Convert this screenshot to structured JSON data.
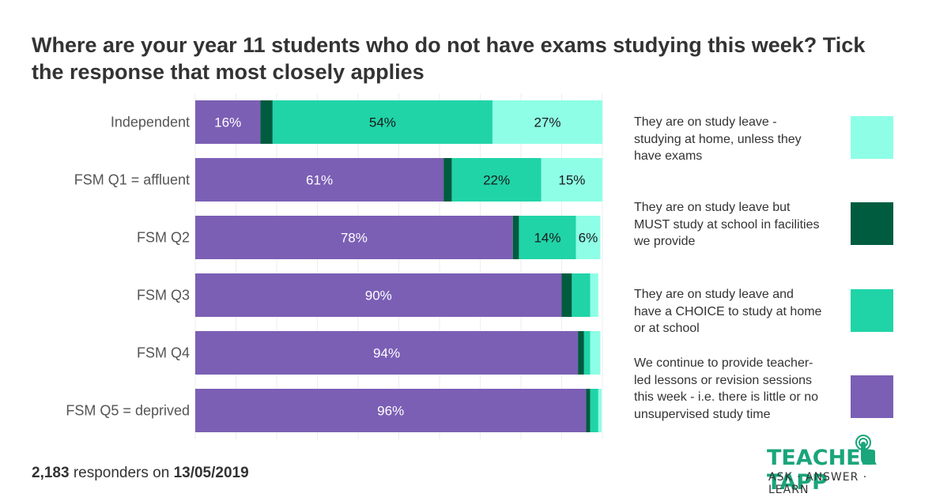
{
  "title": "Where are your year 11 students who do not have exams studying this week? Tick the response that most closely applies",
  "chart_data": {
    "type": "bar",
    "orientation": "horizontal",
    "stacked": true,
    "categories": [
      "Independent",
      "FSM Q1 = affluent",
      "FSM Q2",
      "FSM Q3",
      "FSM Q4",
      "FSM Q5 = deprived"
    ],
    "series": [
      {
        "name": "We continue to provide teacher-led lessons or revision sessions this week - i.e. there is little or no unsupervised study time",
        "color": "#7b5fb5",
        "label_color": "#ffffff",
        "values": [
          16,
          61,
          78,
          90,
          94,
          96
        ],
        "labels": [
          "16%",
          "61%",
          "78%",
          "90%",
          "94%",
          "96%"
        ]
      },
      {
        "name": "They are on study leave but MUST study at school in facilities we provide",
        "color": "#005c3f",
        "label_color": "#ffffff",
        "values": [
          3,
          2,
          1.5,
          2.5,
          1.5,
          1
        ],
        "labels": [
          "",
          "",
          "",
          "",
          "",
          ""
        ]
      },
      {
        "name": "They are on  study leave and have a CHOICE to study at home or at school",
        "color": "#20d4a8",
        "label_color": "#1a1a1a",
        "values": [
          54,
          22,
          14,
          4.5,
          1.5,
          2
        ],
        "labels": [
          "54%",
          "22%",
          "14%",
          "",
          "",
          ""
        ]
      },
      {
        "name": "They are on study leave - studying at home, unless they have exams",
        "color": "#8effe6",
        "label_color": "#1a1a1a",
        "values": [
          27,
          15,
          6,
          2,
          2.5,
          0.8
        ],
        "labels": [
          "27%",
          "15%",
          "6%",
          "",
          "",
          ""
        ]
      }
    ],
    "xlim": [
      0,
      100
    ],
    "grid": true,
    "legend": [
      {
        "text": "They are on study leave - studying at home, unless they have exams",
        "color": "#8effe6"
      },
      {
        "text": "They are on study leave but MUST study at school in facilities we provide",
        "color": "#005c3f"
      },
      {
        "text": "They are on  study leave and have a CHOICE to study at home or at school",
        "color": "#20d4a8"
      },
      {
        "text": "We continue to provide teacher-led lessons or revision sessions this week - i.e. there is little or no unsupervised study time",
        "color": "#7b5fb5"
      }
    ]
  },
  "footer": {
    "count": "2,183",
    "middle": "responders on",
    "date": "13/05/2019"
  },
  "logo": {
    "left": "TEACHER",
    "right": "TAPP",
    "tagline": "ASK · ANSWER · LEARN"
  }
}
